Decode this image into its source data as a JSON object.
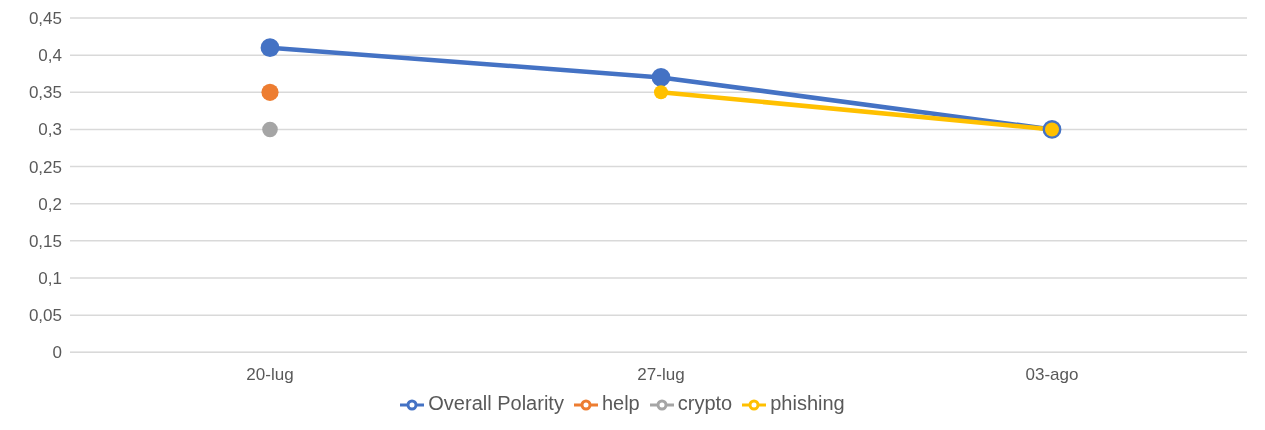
{
  "chart_data": {
    "type": "line",
    "categories": [
      "20-lug",
      "27-lug",
      "03-ago"
    ],
    "series": [
      {
        "name": "Overall Polarity",
        "color": "#4472c4",
        "values": [
          0.41,
          0.37,
          0.3
        ]
      },
      {
        "name": "help",
        "color": "#ed7d31",
        "values": [
          0.35,
          null,
          null
        ]
      },
      {
        "name": "crypto",
        "color": "#a5a5a5",
        "values": [
          0.3,
          null,
          null
        ]
      },
      {
        "name": "phishing",
        "color": "#ffc000",
        "values": [
          null,
          0.35,
          0.3
        ]
      }
    ],
    "ylim": [
      0,
      0.45
    ],
    "yticks": [
      0,
      {
        "value": 0.05,
        "label": "0,05"
      },
      {
        "value": 0.1,
        "label": "0,1"
      },
      {
        "value": 0.15,
        "label": "0,15"
      },
      {
        "value": 0.2,
        "label": "0,2"
      },
      {
        "value": 0.25,
        "label": "0,25"
      },
      {
        "value": 0.3,
        "label": "0,3"
      },
      {
        "value": 0.35,
        "label": "0,35"
      },
      {
        "value": 0.4,
        "label": "0,4"
      },
      {
        "value": 0.45,
        "label": "0,45"
      }
    ],
    "grid": "y",
    "legend": "bottom",
    "marker": "circle",
    "line_style": "solid"
  }
}
